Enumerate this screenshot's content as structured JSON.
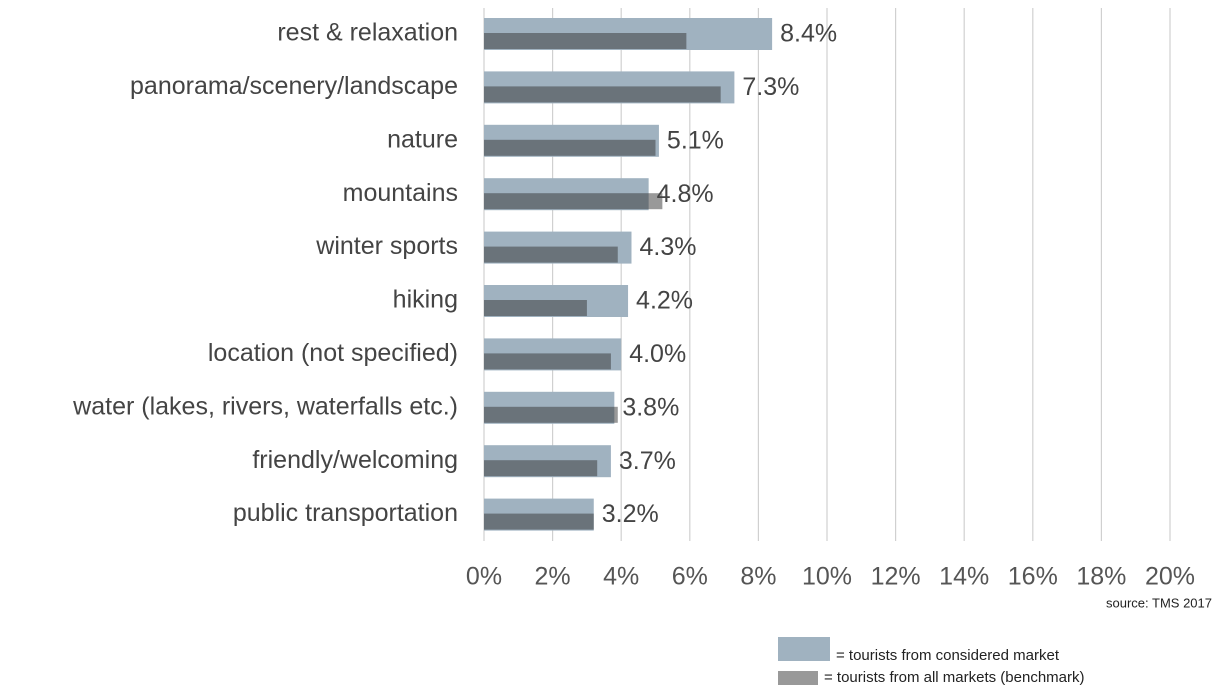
{
  "chart_data": {
    "type": "bar",
    "orientation": "horizontal",
    "categories": [
      "rest & relaxation",
      "panorama/scenery/landscape",
      "nature",
      "mountains",
      "winter sports",
      "hiking",
      "location (not specified)",
      "water (lakes, rivers, waterfalls etc.)",
      "friendly/welcoming",
      "public transportation"
    ],
    "series": [
      {
        "name": "= tourists from considered market",
        "color": "#a0b2c0",
        "values": [
          8.4,
          7.3,
          5.1,
          4.8,
          4.3,
          4.2,
          4.0,
          3.8,
          3.7,
          3.2
        ],
        "value_labels": [
          "8.4%",
          "7.3%",
          "5.1%",
          "4.8%",
          "4.3%",
          "4.2%",
          "4.0%",
          "3.8%",
          "3.7%",
          "3.2%"
        ]
      },
      {
        "name": "= tourists from all markets (benchmark)",
        "color": "#333333",
        "opacity": 0.5,
        "values": [
          5.9,
          6.9,
          5.0,
          5.2,
          3.9,
          3.0,
          3.7,
          3.9,
          3.3,
          3.2
        ]
      }
    ],
    "xlim": [
      0,
      20
    ],
    "xticks": [
      {
        "value": 0,
        "label": "0%"
      },
      {
        "value": 2,
        "label": "2%"
      },
      {
        "value": 4,
        "label": "4%"
      },
      {
        "value": 6,
        "label": "6%"
      },
      {
        "value": 8,
        "label": "8%"
      },
      {
        "value": 10,
        "label": "10%"
      },
      {
        "value": 12,
        "label": "12%"
      },
      {
        "value": 14,
        "label": "14%"
      },
      {
        "value": 16,
        "label": "16%"
      },
      {
        "value": 18,
        "label": "18%"
      },
      {
        "value": 20,
        "label": "20%"
      }
    ],
    "grid": true,
    "source": "source: TMS 2017"
  }
}
